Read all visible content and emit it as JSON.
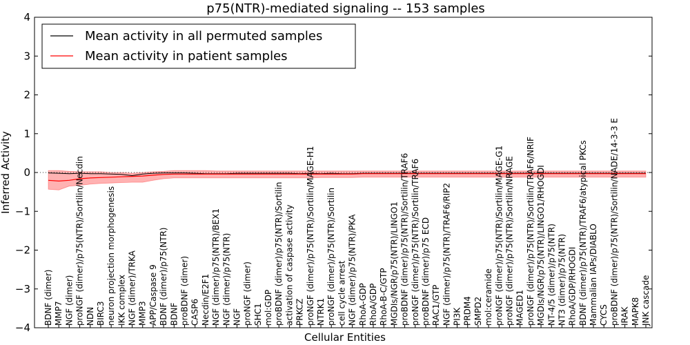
{
  "chart_data": {
    "type": "line",
    "title": "p75(NTR)-mediated signaling -- 153 samples",
    "xlabel": "Cellular Entities",
    "ylabel": "Inferred Activity",
    "ylim": [
      -4,
      4
    ],
    "yticks": [
      4,
      3,
      2,
      1,
      0,
      -1,
      -2,
      -3,
      -4
    ],
    "ytick_labels": [
      "4",
      "3",
      "2",
      "1",
      "0",
      "−1",
      "−2",
      "−3",
      "−4"
    ],
    "legend": {
      "position": "top-left",
      "entries": [
        {
          "label": "Mean activity in all permuted samples",
          "color": "#000000"
        },
        {
          "label": "Mean activity in patient samples",
          "color": "#ff0000"
        }
      ]
    },
    "categories": [
      "BDNF (dimer)",
      "MMP7",
      "NGF (dimer)",
      "proNGF (dimer)/p75(NTR)/Sortilin/Necdin",
      "NDN",
      "BIRC3",
      "neuron projection morphogenesis",
      "IKK complex",
      "NGF (dimer)/TRKA",
      "MMP3",
      "APP/Caspase 9",
      "BDNF (dimer)/p75(NTR)",
      "BDNF",
      "proBDNF (dimer)",
      "CASP6",
      "Necdin/E2F1",
      "NGF (dimer)/p75(NTR)/BEX1",
      "NGF (dimer)/p75(NTR)",
      "NGF",
      "proNGF (dimer)",
      "SHC1",
      "mol:GDP",
      "proBDNF (dimer)/p75(NTR)/Sortilin",
      "activation of caspase activity",
      "PRKCZ",
      "proNGF (dimer)/p75(NTR)/Sortilin/MAGE-H1",
      "NTRK1",
      "proNGF (dimer)/p75(NTR)/Sortilin",
      "cell cycle arrest",
      "NGF (dimer)/p75(NTR)/PKA",
      "RhoA-GDP",
      "RhoA/GDP",
      "RhoA-B-C/GTP",
      "MGDIs/NGR/p75(NTR)/LINGO1",
      "proBDNF (dimer)/p75(NTR)/Sortilin/TRAF6",
      "proNGF (dimer)/p75(NTR)/Sortilin/TRAF6",
      "proBDNF (dimer)/p75 ECD",
      "RAC1/GTP",
      "NGF (dimer)/p75(NTR)/TRAF6/RIP2",
      "PI3K",
      "PRDM4",
      "SMPD2",
      "mol:ceramide",
      "proNGF (dimer)/p75(NTR)/Sortilin/MAGE-G1",
      "proNGF (dimer)/p75(NTR)/Sortilin/NRAGE",
      "MAGED1",
      "proNGF (dimer)/p75(NTR)/Sortilin/TRAF6/NRIF",
      "MGDIs/NGR/p75(NTR)/LINGO1/RHOGDI",
      "NT-4/5 (dimer)/p75(NTR)",
      "NT3 (dimer)/p75(NTR)",
      "RhoA/GDP/RHOGDI",
      "BDNF (dimer)/p75(NTR)/TRAF6/atypical PKCs",
      "Mammalian IAPs/DIABLO",
      "CYCS",
      "proBDNF (dimer)/p75(NTR)/Sortilin/NADE/14-3-3 E",
      "IRAK",
      "MAPK8",
      "JNK cascade"
    ],
    "series": [
      {
        "name": "Mean activity in all permuted samples",
        "color": "#000000",
        "values": [
          -0.01,
          -0.02,
          -0.03,
          -0.02,
          -0.03,
          -0.03,
          -0.04,
          -0.05,
          -0.08,
          -0.04,
          -0.02,
          -0.01,
          -0.01,
          -0.01,
          -0.02,
          -0.03,
          -0.03,
          -0.03,
          -0.02,
          -0.02,
          -0.02,
          -0.02,
          -0.02,
          -0.02,
          -0.03,
          -0.02,
          -0.03,
          -0.02,
          -0.03,
          -0.03,
          -0.02,
          -0.02,
          -0.02,
          -0.02,
          -0.02,
          -0.02,
          -0.02,
          -0.02,
          -0.02,
          -0.02,
          -0.02,
          -0.02,
          -0.02,
          -0.02,
          -0.02,
          -0.02,
          -0.02,
          -0.02,
          -0.02,
          -0.02,
          -0.02,
          -0.02,
          -0.02,
          -0.02,
          -0.02,
          -0.02,
          -0.02,
          -0.02
        ]
      },
      {
        "name": "Mean activity in patient samples",
        "color": "#ff0000",
        "values": [
          -0.2,
          -0.22,
          -0.2,
          -0.16,
          -0.14,
          -0.13,
          -0.12,
          -0.11,
          -0.1,
          -0.09,
          -0.07,
          -0.05,
          -0.04,
          -0.04,
          -0.04,
          -0.04,
          -0.04,
          -0.04,
          -0.04,
          -0.04,
          -0.04,
          -0.04,
          -0.04,
          -0.04,
          -0.04,
          -0.04,
          -0.04,
          -0.04,
          -0.04,
          -0.04,
          -0.03,
          -0.03,
          -0.03,
          -0.03,
          -0.03,
          -0.03,
          -0.03,
          -0.03,
          -0.03,
          -0.03,
          -0.03,
          -0.03,
          -0.03,
          -0.03,
          -0.03,
          -0.03,
          -0.03,
          -0.03,
          -0.03,
          -0.03,
          -0.03,
          -0.03,
          -0.03,
          -0.03,
          -0.03,
          -0.03,
          -0.03,
          -0.03
        ]
      }
    ],
    "band": {
      "name": "patient spread",
      "color": "#ff0000",
      "upper": [
        0.05,
        0.05,
        0.03,
        0.02,
        0.02,
        0.02,
        0.0,
        0.0,
        -0.02,
        0.0,
        0.02,
        0.03,
        0.05,
        0.05,
        0.05,
        0.05,
        0.04,
        0.04,
        0.04,
        0.04,
        0.04,
        0.04,
        0.04,
        0.04,
        0.04,
        0.04,
        0.04,
        0.04,
        0.04,
        0.04,
        0.04,
        0.04,
        0.04,
        0.04,
        0.04,
        0.04,
        0.04,
        0.04,
        0.04,
        0.04,
        0.04,
        0.04,
        0.04,
        0.04,
        0.04,
        0.04,
        0.04,
        0.04,
        0.04,
        0.04,
        0.04,
        0.04,
        0.04,
        0.04,
        0.04,
        0.04,
        0.04,
        0.04
      ],
      "lower": [
        -0.43,
        -0.45,
        -0.35,
        -0.33,
        -0.3,
        -0.28,
        -0.27,
        -0.26,
        -0.25,
        -0.25,
        -0.2,
        -0.16,
        -0.14,
        -0.14,
        -0.14,
        -0.14,
        -0.14,
        -0.14,
        -0.14,
        -0.14,
        -0.14,
        -0.14,
        -0.14,
        -0.14,
        -0.14,
        -0.14,
        -0.13,
        -0.13,
        -0.13,
        -0.13,
        -0.12,
        -0.12,
        -0.12,
        -0.12,
        -0.12,
        -0.12,
        -0.12,
        -0.12,
        -0.12,
        -0.12,
        -0.12,
        -0.12,
        -0.12,
        -0.12,
        -0.12,
        -0.12,
        -0.12,
        -0.12,
        -0.12,
        -0.12,
        -0.12,
        -0.12,
        -0.12,
        -0.12,
        -0.12,
        -0.12,
        -0.12,
        -0.12
      ]
    },
    "reference_line": {
      "y": 0,
      "style": "dotted"
    }
  }
}
